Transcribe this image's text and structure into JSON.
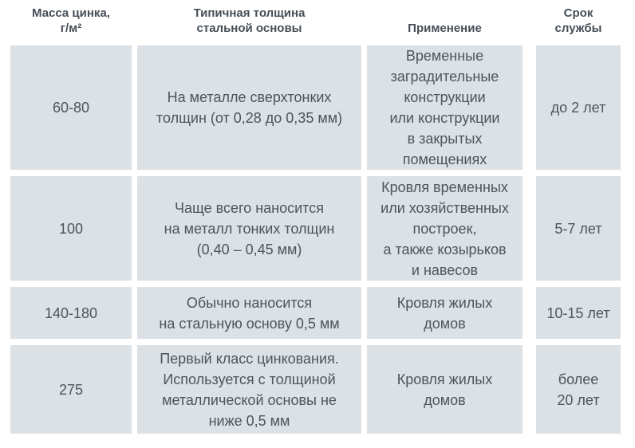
{
  "table": {
    "headers": [
      "Масса цинка,\nг/м²",
      "Типичная толщина\nстальной основы",
      "Применение",
      "Срок\nслужбы"
    ],
    "rows": [
      {
        "cells": [
          "60-80",
          "На металле сверхтонких\nтолщин (от 0,28 до 0,35 мм)",
          "Временные\nзаградительные\nконструкции\nили конструкции\nв закрытых\nпомещениях",
          "до 2 лет"
        ]
      },
      {
        "cells": [
          "100",
          "Чаще всего наносится\nна металл тонких толщин\n(0,40 – 0,45 мм)",
          "Кровля временных\nили хозяйственных\nпостроек,\nа также козырьков\nи навесов",
          "5-7 лет"
        ]
      },
      {
        "cells": [
          "140-180",
          "Обычно наносится\nна стальную основу 0,5 мм",
          "Кровля жилых\nдомов",
          "10-15 лет"
        ]
      },
      {
        "cells": [
          "275",
          "Первый класс цинкования.\nИспользуется с толщиной\nметаллической основы не\nниже 0,5 мм",
          "Кровля жилых\nдомов",
          "более\n20 лет"
        ]
      }
    ]
  },
  "colors": {
    "page_bg": "#ffffff",
    "cell_bg": "#dce1e5",
    "header_text": "#454e57",
    "cell_text": "#4d545b"
  },
  "chart_data": {
    "type": "table",
    "columns": [
      "Масса цинка, г/м²",
      "Типичная толщина стальной основы",
      "Применение",
      "Срок службы"
    ],
    "rows": [
      [
        "60-80",
        "На металле сверхтонких толщин (от 0,28 до 0,35 мм)",
        "Временные заградительные конструкции или конструкции в закрытых помещениях",
        "до 2 лет"
      ],
      [
        "100",
        "Чаще всего наносится на металл тонких толщин (0,40 – 0,45 мм)",
        "Кровля временных или хозяйственных построек, а также козырьков и навесов",
        "5-7 лет"
      ],
      [
        "140-180",
        "Обычно наносится на стальную основу 0,5 мм",
        "Кровля жилых домов",
        "10-15 лет"
      ],
      [
        "275",
        "Первый класс цинкования. Используется с толщиной металлической основы не ниже 0,5 мм",
        "Кровля жилых домов",
        "более 20 лет"
      ]
    ],
    "title": "",
    "legend_position": "none",
    "grid": false
  }
}
